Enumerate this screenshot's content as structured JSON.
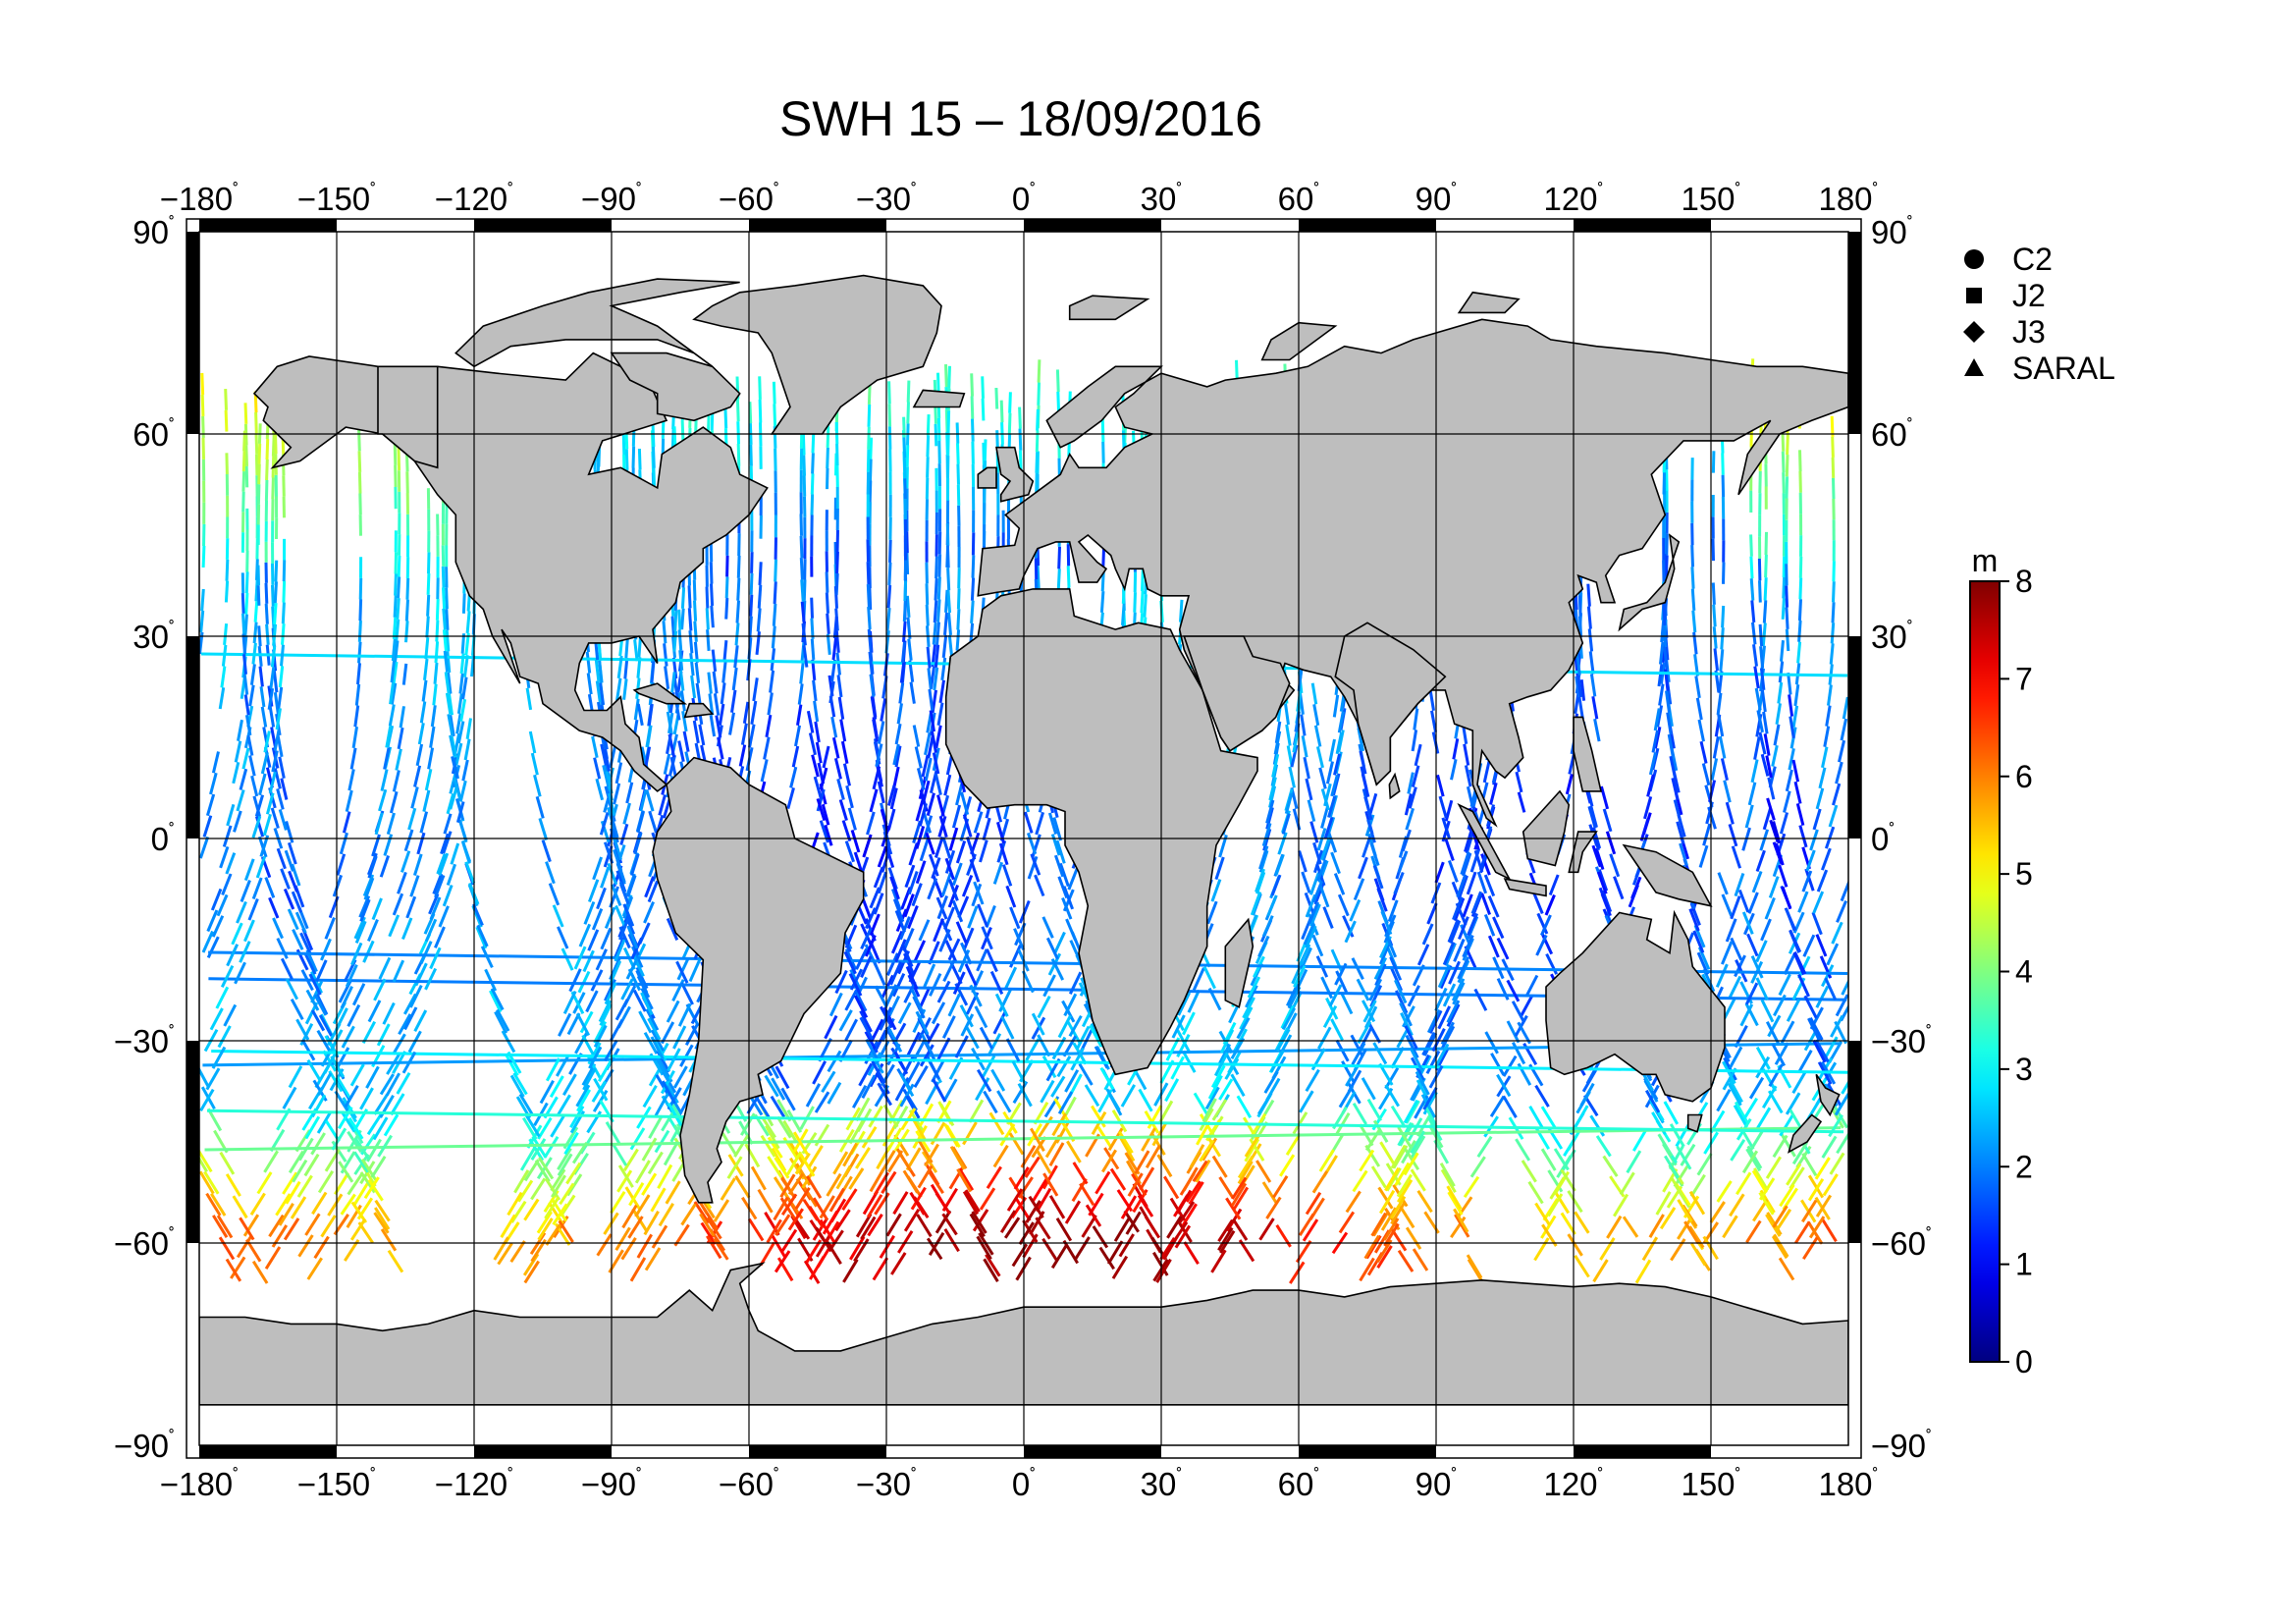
{
  "title": "SWH 15 – 18/09/2016",
  "map": {
    "lon_range": [
      -180,
      180
    ],
    "lat_range": [
      -90,
      90
    ],
    "lon_ticks": [
      "−180",
      "−150",
      "−120",
      "−90",
      "−60",
      "−30",
      "0",
      "30",
      "60",
      "90",
      "120",
      "150",
      "180"
    ],
    "lat_ticks": [
      "90",
      "60",
      "30",
      "0",
      "−30",
      "−60",
      "−90"
    ],
    "degree_symbol": "˚",
    "land_color": "#bebebe",
    "grid": true
  },
  "satellites": {
    "items": [
      {
        "label": "C2",
        "marker": "circle"
      },
      {
        "label": "J2",
        "marker": "square"
      },
      {
        "label": "J3",
        "marker": "diamond"
      },
      {
        "label": "SARAL",
        "marker": "triangle"
      }
    ]
  },
  "colorbar": {
    "unit": "m",
    "min": 0,
    "max": 8,
    "tick_labels": [
      "0",
      "1",
      "2",
      "3",
      "4",
      "5",
      "6",
      "7",
      "8"
    ],
    "colormap": "jet",
    "colors": [
      "#00008f",
      "#0000ff",
      "#007fff",
      "#00ffff",
      "#7fff7f",
      "#ffff00",
      "#ff7f00",
      "#ff0000",
      "#7f0000"
    ]
  },
  "chart_data": {
    "type": "map",
    "variable": "SWH",
    "xlim": [
      -180,
      180
    ],
    "ylim": [
      -90,
      90
    ],
    "color_scale": [
      0,
      8
    ],
    "unit": "m",
    "description_regions": [
      {
        "lat_band": [
          -65,
          -40
        ],
        "swh_range": [
          3,
          8
        ]
      },
      {
        "lat_band": [
          -40,
          40
        ],
        "swh_range": [
          1,
          3
        ]
      },
      {
        "lat_band": [
          40,
          65
        ],
        "swh_range": [
          1,
          5
        ]
      }
    ]
  }
}
